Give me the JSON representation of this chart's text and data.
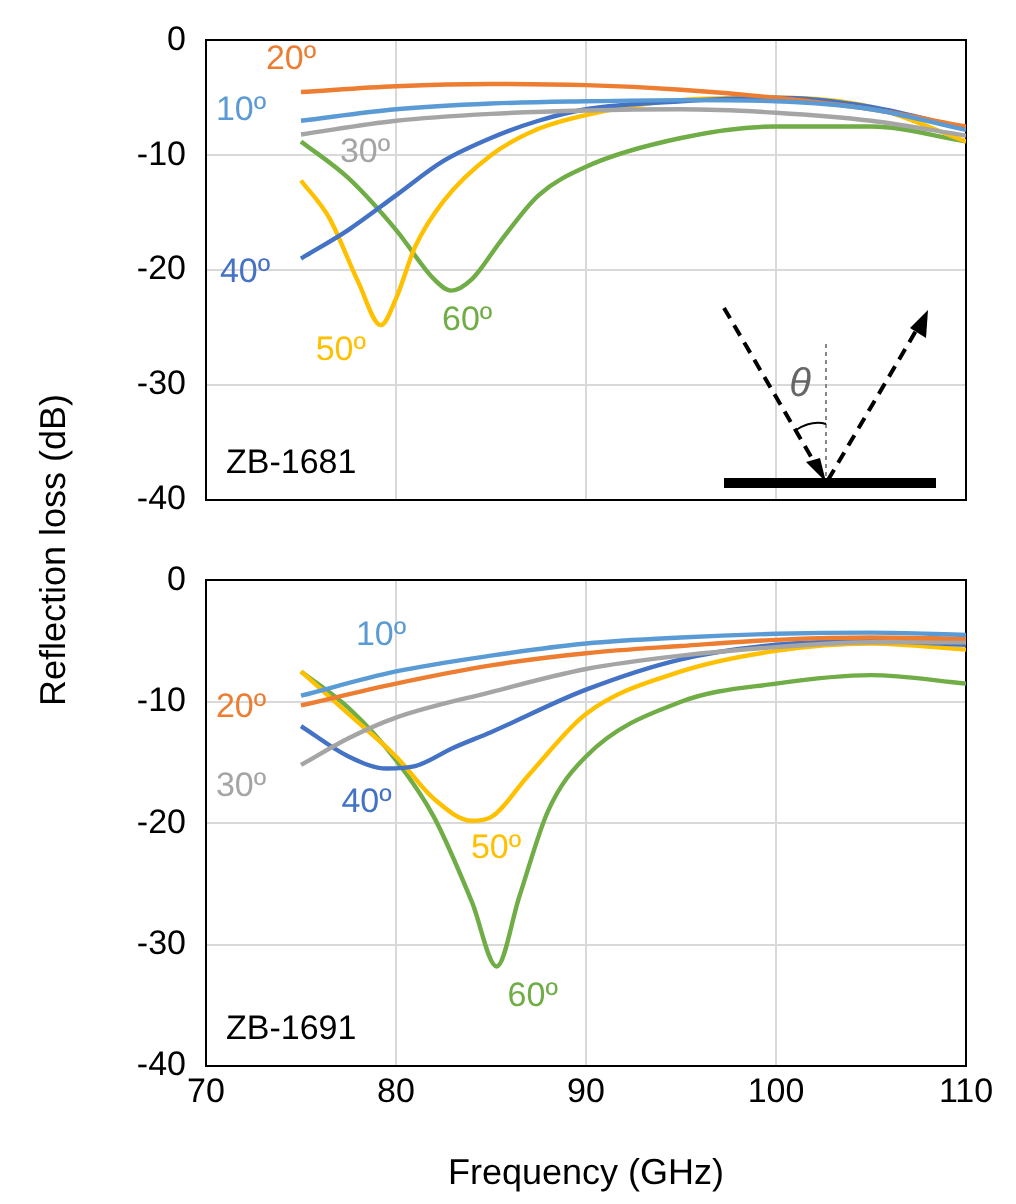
{
  "chart_data": [
    {
      "type": "line",
      "ylabel": "Reflection loss (dB)",
      "xlim": [
        70,
        110
      ],
      "xticks": [
        70,
        80,
        90,
        100,
        110
      ],
      "ylim": [
        -40,
        0
      ],
      "yticks": [
        0,
        -10,
        -20,
        -30,
        -40
      ],
      "grid": true,
      "legend": false,
      "marker": "none",
      "line_style": "solid",
      "tick_labels": "y",
      "annotations": [
        "ZB-1681",
        "θ"
      ],
      "series": [
        {
          "name": "10º",
          "color": "#5b9bd5",
          "x": [
            75,
            80,
            85,
            90,
            95,
            100,
            105,
            110
          ],
          "values": [
            -7,
            -6,
            -5.5,
            -5.3,
            -5.2,
            -5.3,
            -6,
            -7.8
          ]
        },
        {
          "name": "20º",
          "color": "#ed7d31",
          "x": [
            75,
            80,
            85,
            90,
            95,
            100,
            105,
            110
          ],
          "values": [
            -4.5,
            -4,
            -3.8,
            -3.9,
            -4.3,
            -5,
            -6,
            -7.5
          ]
        },
        {
          "name": "30º",
          "color": "#a5a5a5",
          "x": [
            75,
            80,
            85,
            90,
            95,
            100,
            105,
            110
          ],
          "values": [
            -8.2,
            -7,
            -6.4,
            -6.1,
            -6,
            -6.3,
            -7,
            -8.3
          ]
        },
        {
          "name": "40º",
          "color": "#4472c4",
          "x": [
            75,
            77.5,
            80,
            82.5,
            85,
            87.5,
            90,
            95,
            100,
            105,
            110
          ],
          "values": [
            -19,
            -16.5,
            -13.5,
            -10.5,
            -8.5,
            -7,
            -6,
            -5.3,
            -5,
            -5.8,
            -7.7
          ]
        },
        {
          "name": "50º",
          "color": "#ffc000",
          "x": [
            75,
            76.5,
            78,
            79.2,
            80,
            81,
            82.5,
            85,
            87.5,
            90,
            95,
            100,
            105,
            110
          ],
          "values": [
            -12.2,
            -15.5,
            -21,
            -24.8,
            -22.5,
            -18,
            -14,
            -10,
            -7.7,
            -6.5,
            -5.2,
            -5,
            -5.8,
            -8.8
          ]
        },
        {
          "name": "60º",
          "color": "#70ad47",
          "x": [
            75,
            77.5,
            80,
            82,
            82.9,
            84,
            85.5,
            87.5,
            90,
            95,
            100,
            105,
            110
          ],
          "values": [
            -8.8,
            -12,
            -16.5,
            -20.8,
            -21.8,
            -20.8,
            -17.5,
            -13.5,
            -11,
            -8.5,
            -7.5,
            -7.5,
            -8.8
          ]
        }
      ]
    },
    {
      "type": "line",
      "xlabel": "Frequency (GHz)",
      "xlim": [
        70,
        110
      ],
      "xticks": [
        70,
        80,
        90,
        100,
        110
      ],
      "ylim": [
        -40,
        0
      ],
      "yticks": [
        0,
        -10,
        -20,
        -30,
        -40
      ],
      "grid": true,
      "legend": false,
      "marker": "none",
      "line_style": "solid",
      "annotations": [
        "ZB-1691"
      ],
      "series": [
        {
          "name": "10º",
          "color": "#5b9bd5",
          "x": [
            75,
            80,
            85,
            90,
            95,
            100,
            105,
            110
          ],
          "values": [
            -9.5,
            -7.5,
            -6.2,
            -5.2,
            -4.7,
            -4.4,
            -4.3,
            -4.5
          ]
        },
        {
          "name": "20º",
          "color": "#ed7d31",
          "x": [
            75,
            80,
            85,
            90,
            95,
            100,
            105,
            110
          ],
          "values": [
            -10.3,
            -8.5,
            -7,
            -6,
            -5.4,
            -4.9,
            -4.7,
            -4.8
          ]
        },
        {
          "name": "30º",
          "color": "#a5a5a5",
          "x": [
            75,
            77.5,
            80,
            85,
            90,
            95,
            100,
            105,
            110
          ],
          "values": [
            -15.2,
            -13,
            -11.3,
            -9.2,
            -7.3,
            -6.2,
            -5.5,
            -5.1,
            -5.1
          ]
        },
        {
          "name": "40º",
          "color": "#4472c4",
          "x": [
            75,
            77.5,
            79.5,
            81,
            83,
            85,
            90,
            95,
            100,
            105,
            110
          ],
          "values": [
            -12,
            -14.5,
            -15.5,
            -15.3,
            -13.8,
            -12.5,
            -9,
            -6.5,
            -5.3,
            -5,
            -5.3
          ]
        },
        {
          "name": "50º",
          "color": "#ffc000",
          "x": [
            75,
            77.5,
            80,
            82,
            84,
            85,
            87,
            90,
            95,
            100,
            105,
            110
          ],
          "values": [
            -7.5,
            -11,
            -14.5,
            -18,
            -19.8,
            -19.5,
            -16,
            -11,
            -7.5,
            -5.8,
            -5.2,
            -5.7
          ]
        },
        {
          "name": "60º",
          "color": "#70ad47",
          "x": [
            75,
            77.5,
            80,
            82,
            84,
            85.3,
            86.5,
            88,
            90,
            95,
            100,
            105,
            110
          ],
          "values": [
            -7.5,
            -10.5,
            -14.8,
            -19.5,
            -26.5,
            -31.8,
            -26,
            -19,
            -14.5,
            -10,
            -8.5,
            -7.8,
            -8.5
          ]
        }
      ]
    }
  ]
}
